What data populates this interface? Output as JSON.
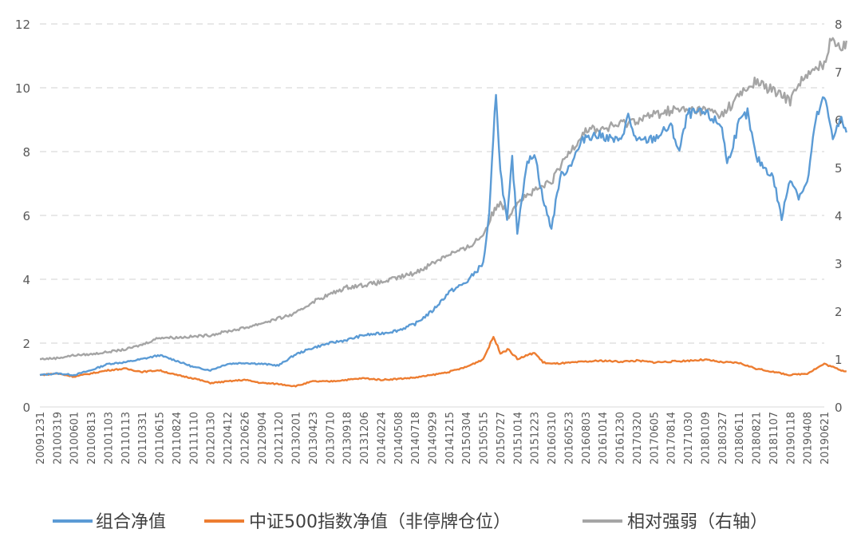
{
  "chart_data": {
    "type": "line",
    "title": "",
    "xlabel": "",
    "ylabel": "",
    "y_left": {
      "ylim": [
        0,
        12
      ],
      "ticks": [
        "0",
        "2",
        "4",
        "6",
        "8",
        "10",
        "12"
      ]
    },
    "y_right": {
      "ylim": [
        0,
        8
      ],
      "ticks": [
        "0",
        "1",
        "2",
        "3",
        "4",
        "5",
        "6",
        "7",
        "8"
      ]
    },
    "grid": "horizontal-dashed",
    "legend_position": "bottom",
    "x_tick_labels": [
      "20091231",
      "20100319",
      "20100601",
      "20100813",
      "20101103",
      "20110113",
      "20110331",
      "20110615",
      "20110824",
      "20111110",
      "20120130",
      "20120412",
      "20120626",
      "20120904",
      "20121120",
      "20130201",
      "20130423",
      "20130710",
      "20130918",
      "20131206",
      "20140224",
      "20140508",
      "20140718",
      "20140929",
      "20141215",
      "20150304",
      "20150515",
      "20150727",
      "20151014",
      "20151223",
      "20160310",
      "20160523",
      "20160803",
      "20161014",
      "20161230",
      "20170320",
      "20170605",
      "20170814",
      "20171030",
      "20180109",
      "20180327",
      "20180611",
      "20180821",
      "20181107",
      "20190118",
      "20190408",
      "20190621"
    ],
    "series": [
      {
        "name": "组合净值",
        "axis": "left",
        "color": "#5B9BD5",
        "points": [
          [
            0,
            1.0
          ],
          [
            1,
            1.05
          ],
          [
            2,
            1.0
          ],
          [
            3,
            1.15
          ],
          [
            4,
            1.35
          ],
          [
            5,
            1.4
          ],
          [
            6,
            1.5
          ],
          [
            7,
            1.62
          ],
          [
            8,
            1.45
          ],
          [
            9,
            1.25
          ],
          [
            10,
            1.15
          ],
          [
            11,
            1.35
          ],
          [
            12,
            1.38
          ],
          [
            13,
            1.35
          ],
          [
            14,
            1.3
          ],
          [
            15,
            1.65
          ],
          [
            16,
            1.85
          ],
          [
            17,
            2.0
          ],
          [
            18,
            2.1
          ],
          [
            19,
            2.25
          ],
          [
            20,
            2.3
          ],
          [
            21,
            2.4
          ],
          [
            22,
            2.6
          ],
          [
            23,
            3.0
          ],
          [
            24,
            3.6
          ],
          [
            25,
            3.9
          ],
          [
            26,
            4.5
          ],
          [
            26.35,
            6.0
          ],
          [
            26.75,
            9.9
          ],
          [
            27,
            7.4
          ],
          [
            27.4,
            5.8
          ],
          [
            27.7,
            7.8
          ],
          [
            28,
            5.5
          ],
          [
            28.5,
            7.5
          ],
          [
            29,
            8.0
          ],
          [
            29.5,
            6.5
          ],
          [
            30,
            5.6
          ],
          [
            30.5,
            7.2
          ],
          [
            31,
            7.5
          ],
          [
            32,
            8.5
          ],
          [
            33,
            8.5
          ],
          [
            34,
            8.3
          ],
          [
            34.5,
            9.1
          ],
          [
            35,
            8.3
          ],
          [
            36,
            8.4
          ],
          [
            37,
            8.8
          ],
          [
            37.5,
            8.0
          ],
          [
            38,
            9.2
          ],
          [
            39,
            9.2
          ],
          [
            40,
            8.8
          ],
          [
            40.3,
            7.6
          ],
          [
            41,
            8.9
          ],
          [
            41.5,
            9.2
          ],
          [
            42,
            7.8
          ],
          [
            43,
            7.2
          ],
          [
            43.5,
            5.9
          ],
          [
            44,
            7.2
          ],
          [
            44.5,
            6.6
          ],
          [
            45,
            7.0
          ],
          [
            45.5,
            9.0
          ],
          [
            46,
            9.7
          ],
          [
            46.5,
            8.5
          ],
          [
            47,
            9.0
          ],
          [
            47.3,
            8.6
          ]
        ]
      },
      {
        "name": "中证500指数净值（非停牌仓位）",
        "axis": "left",
        "color": "#ED7D31",
        "points": [
          [
            0,
            1.0
          ],
          [
            1,
            1.05
          ],
          [
            2,
            0.95
          ],
          [
            3,
            1.05
          ],
          [
            4,
            1.15
          ],
          [
            5,
            1.2
          ],
          [
            6,
            1.1
          ],
          [
            7,
            1.15
          ],
          [
            8,
            1.0
          ],
          [
            9,
            0.9
          ],
          [
            10,
            0.75
          ],
          [
            11,
            0.8
          ],
          [
            12,
            0.85
          ],
          [
            13,
            0.75
          ],
          [
            14,
            0.72
          ],
          [
            15,
            0.65
          ],
          [
            16,
            0.8
          ],
          [
            17,
            0.8
          ],
          [
            18,
            0.85
          ],
          [
            19,
            0.9
          ],
          [
            20,
            0.85
          ],
          [
            21,
            0.88
          ],
          [
            22,
            0.92
          ],
          [
            23,
            1.0
          ],
          [
            24,
            1.1
          ],
          [
            25,
            1.25
          ],
          [
            26,
            1.5
          ],
          [
            26.6,
            2.2
          ],
          [
            27,
            1.7
          ],
          [
            27.5,
            1.8
          ],
          [
            28,
            1.5
          ],
          [
            28.5,
            1.6
          ],
          [
            29,
            1.7
          ],
          [
            29.5,
            1.4
          ],
          [
            30,
            1.35
          ],
          [
            31,
            1.38
          ],
          [
            32,
            1.42
          ],
          [
            33,
            1.45
          ],
          [
            34,
            1.42
          ],
          [
            35,
            1.45
          ],
          [
            36,
            1.4
          ],
          [
            37,
            1.42
          ],
          [
            38,
            1.45
          ],
          [
            39,
            1.48
          ],
          [
            40,
            1.4
          ],
          [
            41,
            1.38
          ],
          [
            42,
            1.2
          ],
          [
            43,
            1.1
          ],
          [
            44,
            1.0
          ],
          [
            45,
            1.05
          ],
          [
            46,
            1.35
          ],
          [
            46.5,
            1.25
          ],
          [
            47,
            1.15
          ],
          [
            47.3,
            1.12
          ]
        ]
      },
      {
        "name": "相对强弱（右轴）",
        "axis": "right",
        "color": "#A5A5A5",
        "points": [
          [
            0,
            1.0
          ],
          [
            1,
            1.02
          ],
          [
            2,
            1.08
          ],
          [
            3,
            1.1
          ],
          [
            4,
            1.15
          ],
          [
            5,
            1.2
          ],
          [
            6,
            1.3
          ],
          [
            7,
            1.45
          ],
          [
            8,
            1.45
          ],
          [
            9,
            1.47
          ],
          [
            10,
            1.5
          ],
          [
            11,
            1.58
          ],
          [
            12,
            1.65
          ],
          [
            13,
            1.75
          ],
          [
            14,
            1.85
          ],
          [
            15,
            1.95
          ],
          [
            16,
            2.2
          ],
          [
            17,
            2.35
          ],
          [
            18,
            2.5
          ],
          [
            19,
            2.55
          ],
          [
            20,
            2.6
          ],
          [
            21,
            2.7
          ],
          [
            22,
            2.8
          ],
          [
            23,
            3.0
          ],
          [
            24,
            3.2
          ],
          [
            25,
            3.3
          ],
          [
            26,
            3.6
          ],
          [
            26.5,
            4.0
          ],
          [
            27,
            4.3
          ],
          [
            27.5,
            4.0
          ],
          [
            28,
            4.3
          ],
          [
            29,
            4.5
          ],
          [
            30,
            4.7
          ],
          [
            31,
            5.3
          ],
          [
            32,
            5.8
          ],
          [
            33,
            5.8
          ],
          [
            34,
            5.9
          ],
          [
            35,
            6.0
          ],
          [
            36,
            6.1
          ],
          [
            37,
            6.2
          ],
          [
            38,
            6.2
          ],
          [
            39,
            6.2
          ],
          [
            40,
            6.1
          ],
          [
            41,
            6.5
          ],
          [
            42,
            6.8
          ],
          [
            43,
            6.6
          ],
          [
            44,
            6.4
          ],
          [
            44.5,
            6.8
          ],
          [
            45,
            6.9
          ],
          [
            46,
            7.2
          ],
          [
            46.5,
            7.75
          ],
          [
            47,
            7.5
          ],
          [
            47.3,
            7.65
          ]
        ]
      }
    ]
  }
}
